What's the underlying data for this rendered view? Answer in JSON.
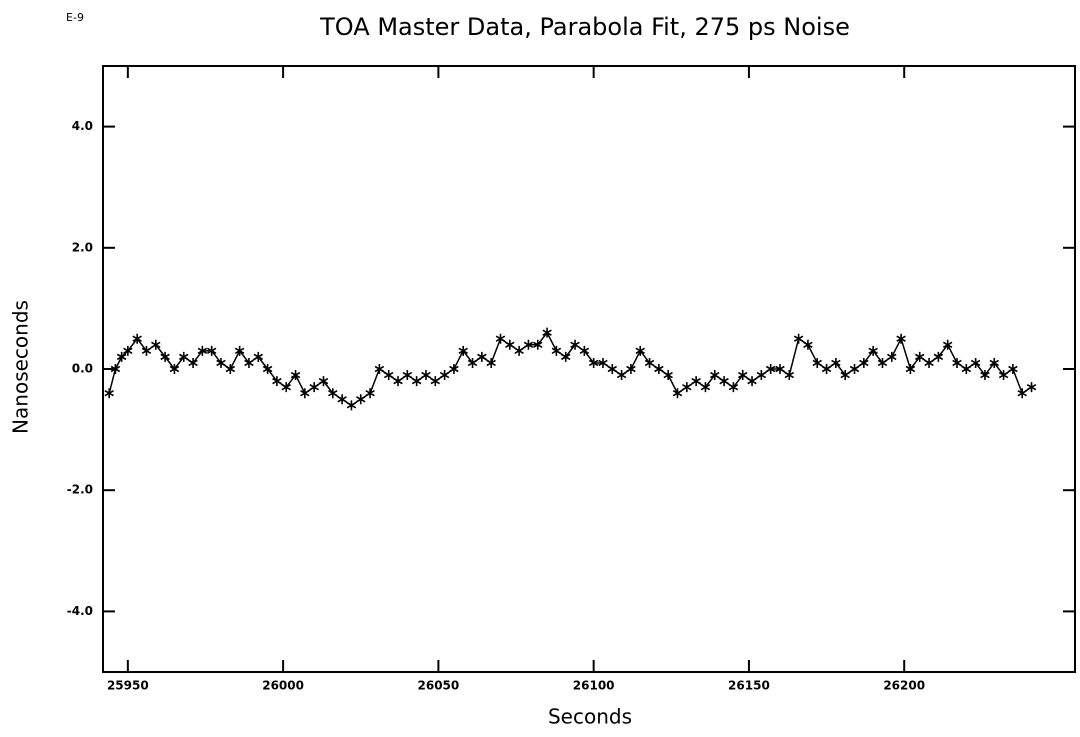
{
  "chart_data": {
    "type": "line",
    "title": "TOA Master Data, Parabola Fit, 275 ps Noise",
    "x_label": "Seconds",
    "y_label": "Nanoseconds",
    "annotation": "E-9",
    "xlim": [
      25942,
      26255
    ],
    "ylim": [
      -5,
      5
    ],
    "xticks": [
      25950,
      26000,
      26050,
      26100,
      26150,
      26200
    ],
    "yticks": [
      {
        "value": -4,
        "label": "-4.0"
      },
      {
        "value": -2,
        "label": "-2.0"
      },
      {
        "value": 0,
        "label": "0.0"
      },
      {
        "value": 2,
        "label": "2.0"
      },
      {
        "value": 4,
        "label": "4.0"
      }
    ],
    "grid": false,
    "marker": "asterisk",
    "series": [
      {
        "color": "#000000",
        "x": [
          25944,
          25946,
          25948,
          25950,
          25953,
          25956,
          25959,
          25962,
          25965,
          25968,
          25971,
          25974,
          25977,
          25980,
          25983,
          25986,
          25989,
          25992,
          25995,
          25998,
          26001,
          26004,
          26007,
          26010,
          26013,
          26016,
          26019,
          26022,
          26025,
          26028,
          26031,
          26034,
          26037,
          26040,
          26043,
          26046,
          26049,
          26052,
          26055,
          26058,
          26061,
          26064,
          26067,
          26070,
          26073,
          26076,
          26079,
          26082,
          26085,
          26088,
          26091,
          26094,
          26097,
          26100,
          26103,
          26106,
          26109,
          26112,
          26115,
          26118,
          26121,
          26124,
          26127,
          26130,
          26133,
          26136,
          26139,
          26142,
          26145,
          26148,
          26151,
          26154,
          26157,
          26160,
          26163,
          26166,
          26169,
          26172,
          26175,
          26178,
          26181,
          26184,
          26187,
          26190,
          26193,
          26196,
          26199,
          26202,
          26205,
          26208,
          26211,
          26214,
          26217,
          26220,
          26223,
          26226,
          26229,
          26232,
          26235,
          26238,
          26241
        ],
        "values": [
          -0.4,
          0.0,
          0.2,
          0.3,
          0.5,
          0.3,
          0.4,
          0.2,
          0.0,
          0.2,
          0.1,
          0.3,
          0.3,
          0.1,
          0.0,
          0.3,
          0.1,
          0.2,
          0.0,
          -0.2,
          -0.3,
          -0.1,
          -0.4,
          -0.3,
          -0.2,
          -0.4,
          -0.5,
          -0.6,
          -0.5,
          -0.4,
          0.0,
          -0.1,
          -0.2,
          -0.1,
          -0.2,
          -0.1,
          -0.2,
          -0.1,
          0.0,
          0.3,
          0.1,
          0.2,
          0.1,
          0.5,
          0.4,
          0.3,
          0.4,
          0.4,
          0.6,
          0.3,
          0.2,
          0.4,
          0.3,
          0.1,
          0.1,
          0.0,
          -0.1,
          0.0,
          0.3,
          0.1,
          0.0,
          -0.1,
          -0.4,
          -0.3,
          -0.2,
          -0.3,
          -0.1,
          -0.2,
          -0.3,
          -0.1,
          -0.2,
          -0.1,
          0.0,
          0.0,
          -0.1,
          0.5,
          0.4,
          0.1,
          0.0,
          0.1,
          -0.1,
          0.0,
          0.1,
          0.3,
          0.1,
          0.2,
          0.5,
          0.0,
          0.2,
          0.1,
          0.2,
          0.4,
          0.1,
          0.0,
          0.1,
          -0.1,
          0.1,
          -0.1,
          0.0,
          -0.4,
          -0.3
        ]
      }
    ]
  }
}
